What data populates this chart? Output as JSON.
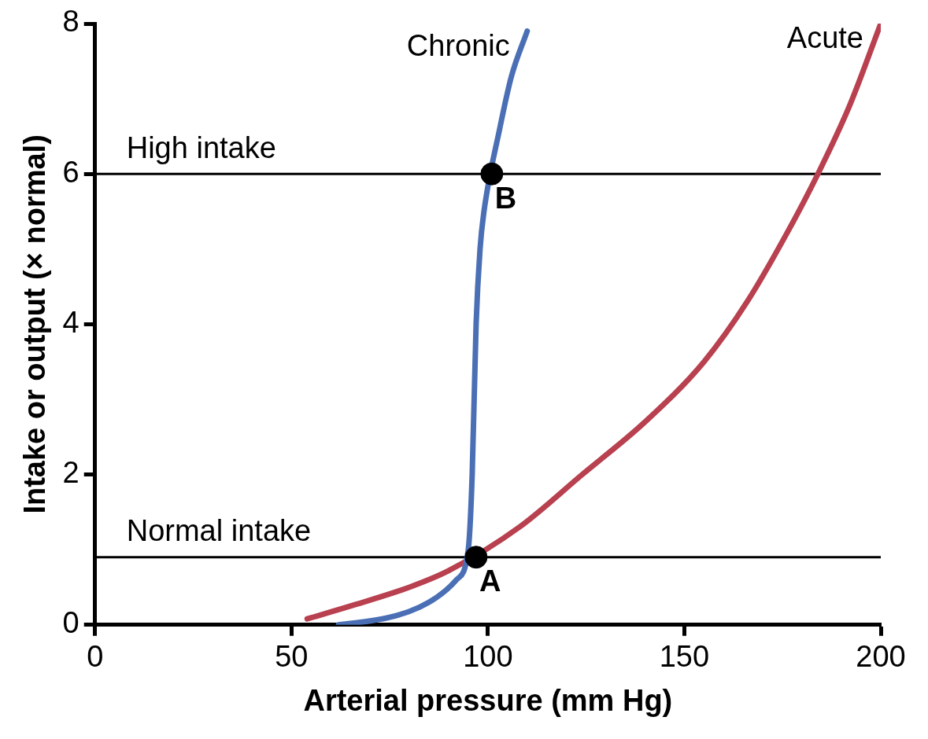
{
  "chart_data": {
    "type": "line",
    "xlabel": "Arterial pressure (mm Hg)",
    "ylabel": "Intake or output (× normal)",
    "xlim": [
      0,
      200
    ],
    "xticks": [
      0,
      50,
      100,
      150,
      200
    ],
    "ylim": [
      0,
      8
    ],
    "yticks": [
      0,
      2,
      4,
      6,
      8
    ],
    "grid": false,
    "legend": false,
    "line_style": "solid",
    "series": [
      {
        "name": "Chronic",
        "type": "line",
        "color": "#4a6fb5",
        "marker": "none",
        "x": [
          62,
          75,
          85,
          92,
          95,
          96,
          97,
          98,
          99,
          103,
          106,
          110
        ],
        "values": [
          0,
          0.1,
          0.3,
          0.6,
          1.0,
          2,
          4,
          5,
          5.5,
          6.6,
          7.3,
          7.9
        ]
      },
      {
        "name": "Acute",
        "type": "line",
        "color": "#b8404f",
        "marker": "none",
        "x": [
          54,
          65,
          80,
          90,
          108,
          124,
          140,
          155,
          166,
          176,
          184,
          192,
          200
        ],
        "values": [
          0.08,
          0.25,
          0.5,
          0.72,
          1.3,
          2,
          2.7,
          3.5,
          4.3,
          5.2,
          6,
          6.9,
          8
        ]
      },
      {
        "type": "scatter",
        "color": "#000000",
        "marker": "circle",
        "x": [
          97,
          101
        ],
        "values": [
          0.9,
          6
        ]
      }
    ],
    "ref_lines": [
      {
        "axis": "y",
        "value": 0.9,
        "label": "Normal intake",
        "color": "#000000"
      },
      {
        "axis": "y",
        "value": 6,
        "label": "High intake",
        "color": "#000000"
      }
    ],
    "annotations": [
      {
        "text": "A",
        "x": 97,
        "y": 0.9
      },
      {
        "text": "B",
        "x": 101,
        "y": 6
      }
    ]
  }
}
